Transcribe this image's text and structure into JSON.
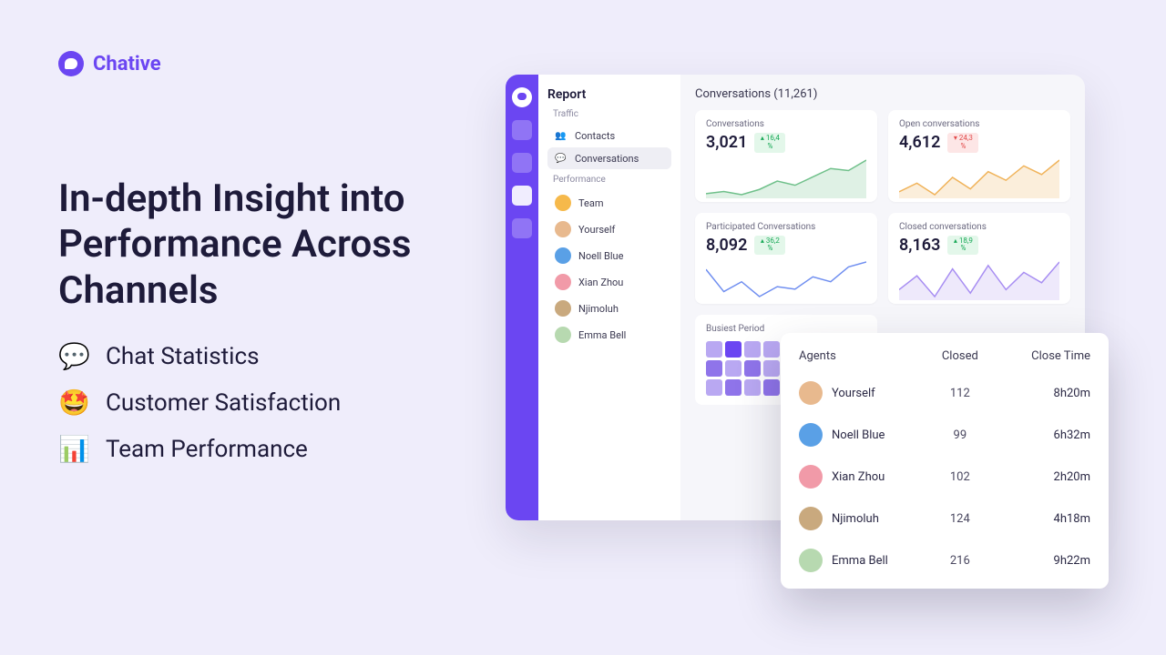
{
  "brand": {
    "name": "Chative"
  },
  "headline": "In-depth Insight into Performance Across Channels",
  "bullets": [
    {
      "emoji": "💬",
      "text": "Chat Statistics"
    },
    {
      "emoji": "🤩",
      "text": "Customer Satisfaction"
    },
    {
      "emoji": "📊",
      "text": "Team Performance"
    }
  ],
  "sidebar": {
    "title": "Report",
    "sections": {
      "traffic_label": "Traffic",
      "performance_label": "Performance"
    },
    "traffic": [
      {
        "label": "Contacts"
      },
      {
        "label": "Conversations",
        "selected": true
      }
    ],
    "performance": [
      {
        "label": "Team",
        "avatar_bg": "#f6b94b"
      },
      {
        "label": "Yourself",
        "avatar_bg": "#e8b98e"
      },
      {
        "label": "Noell Blue",
        "avatar_bg": "#5aa0e6"
      },
      {
        "label": "Xian Zhou",
        "avatar_bg": "#f19aa8"
      },
      {
        "label": "Njimoluh",
        "avatar_bg": "#c9a97e"
      },
      {
        "label": "Emma Bell",
        "avatar_bg": "#b7d9b0"
      }
    ]
  },
  "main": {
    "title": "Conversations (11,261)",
    "metrics": [
      {
        "title": "Conversations",
        "value": "3,021",
        "delta": "16,4 %",
        "trend": "up",
        "spark": {
          "points": [
            18,
            20,
            17,
            22,
            30,
            26,
            34,
            42,
            40,
            50
          ],
          "stroke": "#6fc08a",
          "fill": "#dff1e5"
        }
      },
      {
        "title": "Open conversations",
        "value": "4,612",
        "delta": "24,3 %",
        "trend": "down",
        "spark": {
          "points": [
            22,
            28,
            20,
            32,
            24,
            36,
            30,
            40,
            34,
            44
          ],
          "stroke": "#f0b35a",
          "fill": "#fbeedb"
        }
      },
      {
        "title": "Participated Conversations",
        "value": "8,092",
        "delta": "36,2 %",
        "trend": "up",
        "spark": {
          "points": [
            40,
            22,
            30,
            18,
            26,
            24,
            34,
            30,
            42,
            46
          ],
          "stroke": "#6f8ef0",
          "fill": "#ffffff",
          "fillOpacity": 0
        }
      },
      {
        "title": "Closed conversations",
        "value": "8,163",
        "delta": "18,9 %",
        "trend": "up",
        "spark": {
          "points": [
            30,
            38,
            26,
            42,
            28,
            44,
            30,
            40,
            34,
            46
          ],
          "stroke": "#a78df2",
          "fill": "#eee9fb"
        }
      }
    ],
    "busiest": {
      "title": "Busiest Period",
      "colors": [
        "#d7cdf7",
        "#b9a8f2",
        "#8f74ea",
        "#6b46f2"
      ],
      "grid": [
        [
          1,
          3,
          1,
          1,
          1,
          1
        ],
        [
          2,
          1,
          2,
          1,
          2,
          1
        ],
        [
          1,
          2,
          1,
          2,
          1,
          2
        ]
      ]
    }
  },
  "agents_table": {
    "columns": [
      "Agents",
      "Closed",
      "Close Time"
    ],
    "rows": [
      {
        "name": "Yourself",
        "avatar_bg": "#e8b98e",
        "closed": "112",
        "time": "8h20m"
      },
      {
        "name": "Noell Blue",
        "avatar_bg": "#5aa0e6",
        "closed": "99",
        "time": "6h32m"
      },
      {
        "name": "Xian Zhou",
        "avatar_bg": "#f19aa8",
        "closed": "102",
        "time": "2h20m"
      },
      {
        "name": "Njimoluh",
        "avatar_bg": "#c9a97e",
        "closed": "124",
        "time": "4h18m"
      },
      {
        "name": "Emma Bell",
        "avatar_bg": "#b7d9b0",
        "closed": "216",
        "time": "9h22m"
      }
    ]
  }
}
